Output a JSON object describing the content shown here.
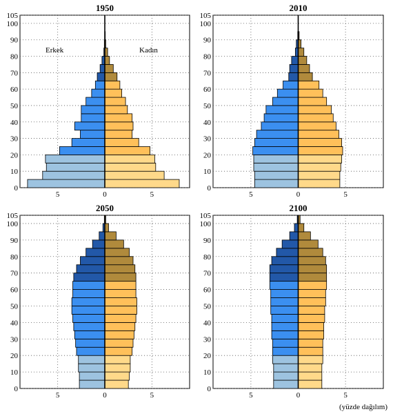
{
  "figure": {
    "caption": "(yüzde dağılım)",
    "colors": {
      "male_young": "#9dc3e0",
      "male_working": "#3b8ff0",
      "male_old": "#2258a8",
      "female_young": "#ffd98a",
      "female_working": "#ffc05a",
      "female_old": "#b08a3c",
      "outline": "#000000",
      "grid": "#555555"
    }
  },
  "chart_data": [
    {
      "type": "bar",
      "title": "1950",
      "orientation": "horizontal-population-pyramid",
      "age_groups": [
        "0",
        "5",
        "10",
        "15",
        "20",
        "25",
        "30",
        "35",
        "40",
        "45",
        "50",
        "55",
        "60",
        "65",
        "70",
        "75",
        "80",
        "85",
        "90",
        "95",
        "100"
      ],
      "series": [
        {
          "name": "Erkek",
          "values": [
            8.2,
            6.6,
            6.2,
            6.3,
            4.8,
            3.5,
            2.6,
            3.2,
            2.5,
            2.5,
            2.0,
            1.4,
            1.0,
            0.8,
            0.5,
            0.3,
            0.1,
            0.05,
            0,
            0,
            0
          ]
        },
        {
          "name": "Kadın",
          "values": [
            7.9,
            6.3,
            5.4,
            5.3,
            4.8,
            3.6,
            2.9,
            3.0,
            2.9,
            2.4,
            2.2,
            1.8,
            1.6,
            1.3,
            0.9,
            0.5,
            0.3,
            0.1,
            0.05,
            0,
            0
          ]
        }
      ],
      "age_ticks": [
        "0",
        "10",
        "20",
        "30",
        "40",
        "50",
        "60",
        "70",
        "80",
        "90",
        "100",
        "105"
      ],
      "x_ticks": [
        "5",
        "0",
        "5"
      ],
      "xlim": [
        -9,
        9
      ],
      "ylim": [
        0,
        105
      ],
      "grid": true,
      "labels": {
        "left": "Erkek",
        "right": "Kadın"
      }
    },
    {
      "type": "bar",
      "title": "2010",
      "orientation": "horizontal-population-pyramid",
      "age_groups": [
        "0",
        "5",
        "10",
        "15",
        "20",
        "25",
        "30",
        "35",
        "40",
        "45",
        "50",
        "55",
        "60",
        "65",
        "70",
        "75",
        "80",
        "85",
        "90",
        "95",
        "100"
      ],
      "series": [
        {
          "name": "Erkek",
          "values": [
            4.6,
            4.6,
            4.7,
            4.7,
            4.8,
            4.6,
            4.4,
            3.9,
            3.6,
            3.4,
            2.7,
            2.2,
            1.6,
            1.0,
            0.9,
            0.7,
            0.3,
            0.2,
            0.05,
            0,
            0
          ]
        },
        {
          "name": "Kadın",
          "values": [
            4.4,
            4.4,
            4.5,
            4.6,
            4.7,
            4.6,
            4.3,
            4.0,
            3.7,
            3.5,
            3.0,
            2.6,
            2.2,
            1.5,
            1.2,
            0.9,
            0.6,
            0.3,
            0.1,
            0,
            0
          ]
        }
      ],
      "age_ticks": [
        "0",
        "10",
        "20",
        "30",
        "40",
        "50",
        "60",
        "70",
        "80",
        "90",
        "100",
        "105"
      ],
      "x_ticks": [
        "5",
        "0",
        "5"
      ],
      "xlim": [
        -9,
        9
      ],
      "ylim": [
        0,
        105
      ],
      "grid": true
    },
    {
      "type": "bar",
      "title": "2050",
      "orientation": "horizontal-population-pyramid",
      "age_groups": [
        "0",
        "5",
        "10",
        "15",
        "20",
        "25",
        "30",
        "35",
        "40",
        "45",
        "50",
        "55",
        "60",
        "65",
        "70",
        "75",
        "80",
        "85",
        "90",
        "95",
        "100"
      ],
      "series": [
        {
          "name": "Erkek",
          "values": [
            2.7,
            2.7,
            2.8,
            2.8,
            3.0,
            3.1,
            3.2,
            3.3,
            3.4,
            3.5,
            3.5,
            3.4,
            3.4,
            3.3,
            3.0,
            2.6,
            2.0,
            1.3,
            0.6,
            0.2,
            0.05
          ]
        },
        {
          "name": "Kadın",
          "values": [
            2.5,
            2.6,
            2.7,
            2.7,
            2.9,
            3.0,
            3.1,
            3.2,
            3.3,
            3.4,
            3.4,
            3.3,
            3.3,
            3.3,
            3.2,
            3.0,
            2.6,
            2.0,
            1.2,
            0.4,
            0.1
          ]
        }
      ],
      "age_ticks": [
        "0",
        "10",
        "20",
        "30",
        "40",
        "50",
        "60",
        "70",
        "80",
        "90",
        "100",
        "105"
      ],
      "x_ticks": [
        "5",
        "0",
        "5"
      ],
      "xlim": [
        -9,
        9
      ],
      "ylim": [
        0,
        105
      ],
      "grid": true
    },
    {
      "type": "bar",
      "title": "2100",
      "orientation": "horizontal-population-pyramid",
      "age_groups": [
        "0",
        "5",
        "10",
        "15",
        "20",
        "25",
        "30",
        "35",
        "40",
        "45",
        "50",
        "55",
        "60",
        "65",
        "70",
        "75",
        "80",
        "85",
        "90",
        "95",
        "100"
      ],
      "series": [
        {
          "name": "Erkek",
          "values": [
            2.6,
            2.6,
            2.6,
            2.7,
            2.7,
            2.7,
            2.8,
            2.8,
            2.8,
            2.9,
            2.9,
            2.9,
            3.0,
            3.0,
            3.0,
            2.8,
            2.3,
            1.7,
            0.9,
            0.4,
            0.1
          ]
        },
        {
          "name": "Kadın",
          "values": [
            2.5,
            2.5,
            2.5,
            2.6,
            2.6,
            2.6,
            2.7,
            2.7,
            2.8,
            2.8,
            2.9,
            2.9,
            3.0,
            3.0,
            3.0,
            2.9,
            2.6,
            2.1,
            1.3,
            0.6,
            0.2
          ]
        }
      ],
      "age_ticks": [
        "0",
        "10",
        "20",
        "30",
        "40",
        "50",
        "60",
        "70",
        "80",
        "90",
        "100",
        "105"
      ],
      "x_ticks": [
        "5",
        "0",
        "5"
      ],
      "xlim": [
        -9,
        9
      ],
      "ylim": [
        0,
        105
      ],
      "grid": true
    }
  ]
}
